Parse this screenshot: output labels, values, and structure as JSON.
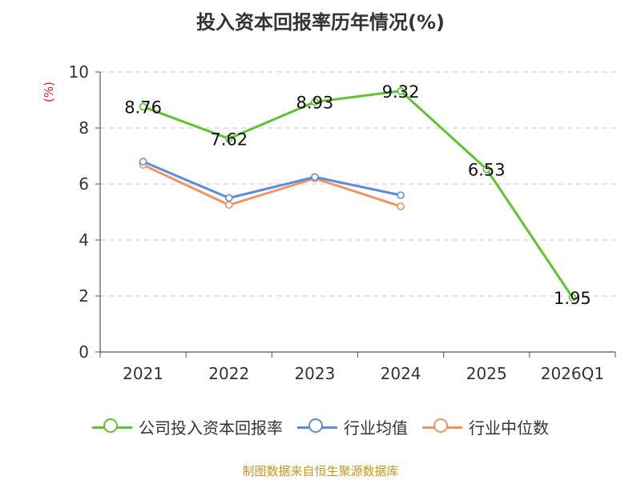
{
  "chart_data": {
    "type": "line",
    "title": "投入资本回报率历年情况(%)",
    "ylabel": "(%)",
    "xlabel": "",
    "categories": [
      "2021",
      "2022",
      "2023",
      "2024",
      "2025",
      "2026Q1"
    ],
    "ylim": [
      0,
      10
    ],
    "yticks": [
      0,
      2,
      4,
      6,
      8,
      10
    ],
    "grid": true,
    "legend_position": "bottom",
    "series": [
      {
        "name": "公司投入资本回报率",
        "color": "#5ec42e",
        "values": [
          8.76,
          7.62,
          8.93,
          9.32,
          6.53,
          1.95
        ],
        "labels": [
          "8.76",
          "7.62",
          "8.93",
          "9.32",
          "6.53",
          "1.95"
        ]
      },
      {
        "name": "行业均值",
        "color": "#5b8ce0",
        "values": [
          6.8,
          5.5,
          6.25,
          5.6,
          null,
          null
        ]
      },
      {
        "name": "行业中位数",
        "color": "#f5935f",
        "values": [
          6.68,
          5.25,
          6.2,
          5.2,
          null,
          null
        ]
      }
    ],
    "source": "制图数据来自恒生聚源数据库"
  }
}
